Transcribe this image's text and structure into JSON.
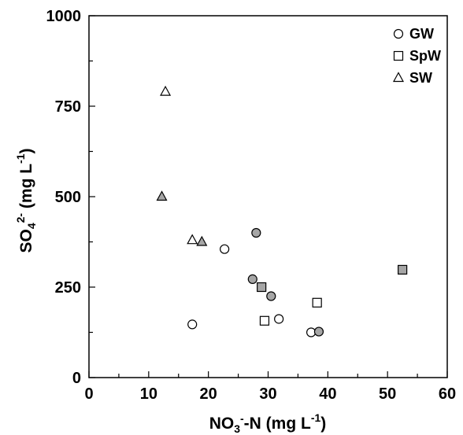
{
  "chart_data": {
    "type": "scatter",
    "xlabel": {
      "base": "NO",
      "sub": "3",
      "sup": "-",
      "tail": "-N (mg L",
      "tail_sup": "-1",
      "end": ")"
    },
    "ylabel": {
      "base": "SO",
      "sub": "4",
      "sup": "2-",
      "tail": " (mg L",
      "tail_sup": "-1",
      "end": ")"
    },
    "xlim": [
      0,
      60
    ],
    "ylim": [
      0,
      1000
    ],
    "x_ticks": [
      "0",
      "10",
      "20",
      "30",
      "40",
      "50",
      "60"
    ],
    "y_ticks": [
      "0",
      "250",
      "500",
      "750",
      "1000"
    ],
    "legend_position": "top-right",
    "legend": [
      {
        "label": "GW",
        "marker": "circle"
      },
      {
        "label": "SpW",
        "marker": "square"
      },
      {
        "label": "SW",
        "marker": "triangle"
      }
    ],
    "colors": {
      "open_fill": "#ffffff",
      "filled_fill": "#a6a6a6",
      "stroke": "#000000"
    },
    "series": [
      {
        "name": "GW",
        "marker": "circle",
        "points": [
          {
            "x": 17.3,
            "y": 147,
            "filled": false
          },
          {
            "x": 22.7,
            "y": 355,
            "filled": false
          },
          {
            "x": 31.8,
            "y": 162,
            "filled": false
          },
          {
            "x": 37.2,
            "y": 125,
            "filled": false
          },
          {
            "x": 27.4,
            "y": 272,
            "filled": true
          },
          {
            "x": 28.0,
            "y": 400,
            "filled": true
          },
          {
            "x": 30.5,
            "y": 225,
            "filled": true
          },
          {
            "x": 38.5,
            "y": 127,
            "filled": true
          }
        ]
      },
      {
        "name": "SpW",
        "marker": "square",
        "points": [
          {
            "x": 29.4,
            "y": 157,
            "filled": false
          },
          {
            "x": 38.2,
            "y": 207,
            "filled": false
          },
          {
            "x": 28.9,
            "y": 250,
            "filled": true
          },
          {
            "x": 52.5,
            "y": 298,
            "filled": true
          }
        ]
      },
      {
        "name": "SW",
        "marker": "triangle",
        "points": [
          {
            "x": 12.8,
            "y": 790,
            "filled": false
          },
          {
            "x": 17.3,
            "y": 380,
            "filled": false
          },
          {
            "x": 12.2,
            "y": 500,
            "filled": true
          },
          {
            "x": 18.9,
            "y": 375,
            "filled": true
          }
        ]
      }
    ]
  }
}
